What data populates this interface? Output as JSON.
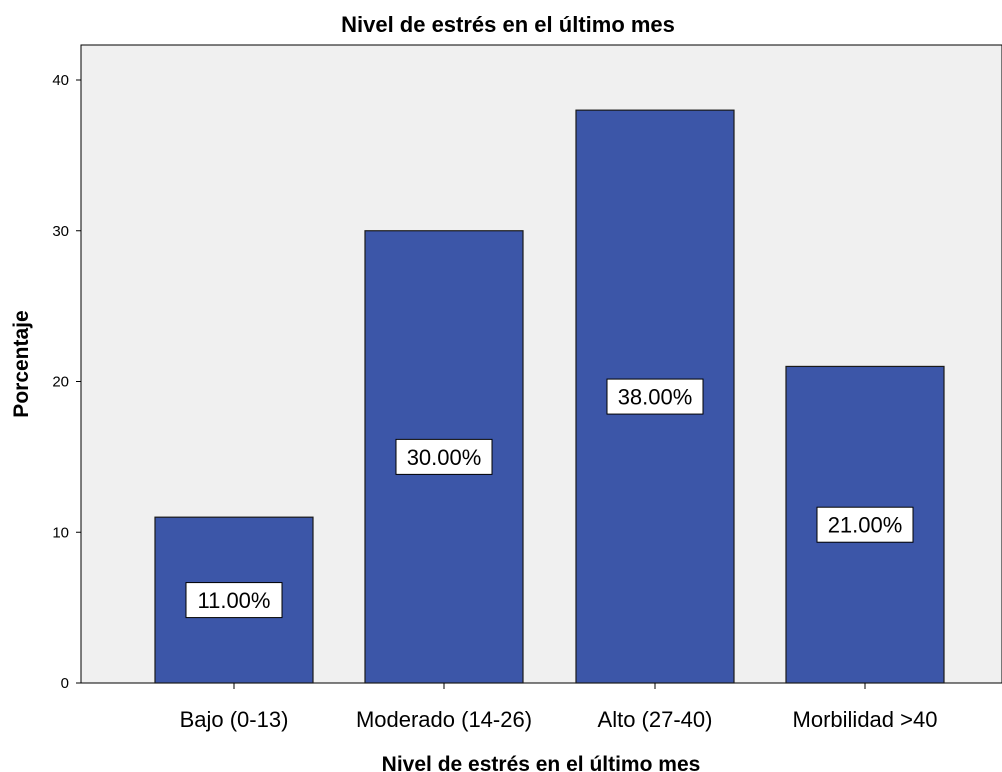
{
  "chart_data": {
    "type": "bar",
    "title": "Nivel de estrés en el último mes",
    "xlabel": "Nivel de estrés en el último mes",
    "ylabel": "Porcentaje",
    "categories": [
      "Bajo (0-13)",
      "Moderado (14-26)",
      "Alto (27-40)",
      "Morbilidad >40"
    ],
    "values": [
      11,
      30,
      38,
      21
    ],
    "data_labels": [
      "11.00%",
      "30.00%",
      "38.00%",
      "21.00%"
    ],
    "ylim": [
      0,
      40
    ],
    "yticks": [
      "0",
      "10",
      "20",
      "30",
      "40"
    ],
    "grid": false,
    "legend": "none",
    "colors": {
      "bar_fill": "#3c56a8",
      "bar_stroke": "#1a1a1a",
      "plot_background": "#f0f0f0",
      "label_background": "#ffffff"
    }
  }
}
